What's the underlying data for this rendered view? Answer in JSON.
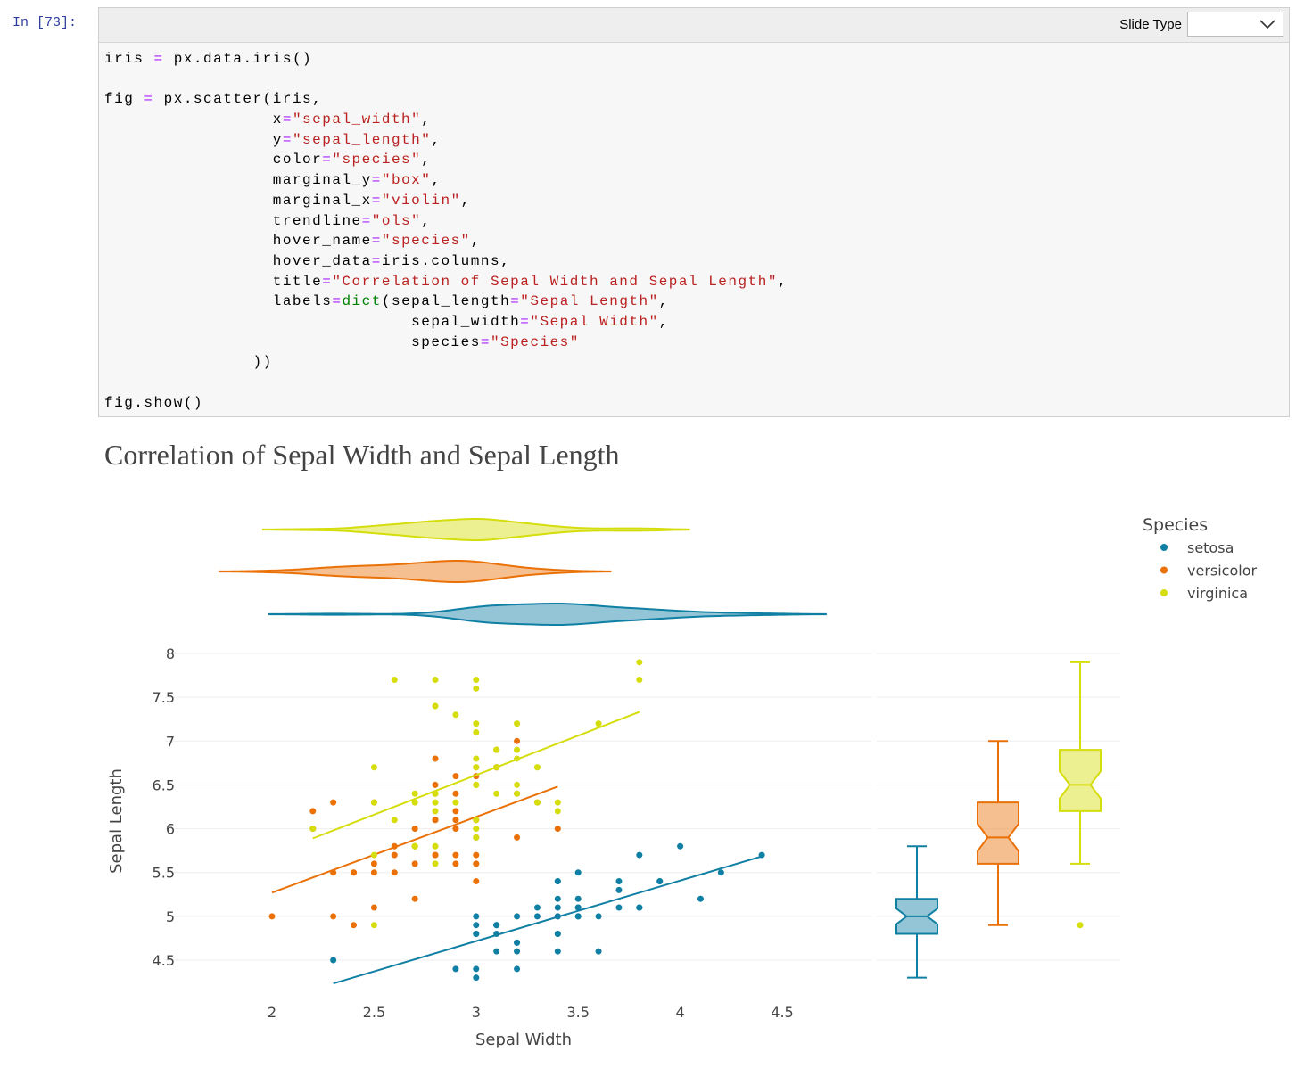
{
  "notebook": {
    "prompt": "In [73]:",
    "slide_type_label": "Slide Type",
    "slide_type_value": "",
    "code_lines": [
      "iris = px.data.iris()",
      "",
      "fig = px.scatter(iris,",
      "                 x=\"sepal_width\",",
      "                 y=\"sepal_length\",",
      "                 color=\"species\",",
      "                 marginal_y=\"box\",",
      "                 marginal_x=\"violin\",",
      "                 trendline=\"ols\",",
      "                 hover_name=\"species\",",
      "                 hover_data=iris.columns,",
      "                 title=\"Correlation of Sepal Width and Sepal Length\",",
      "                 labels=dict(sepal_length=\"Sepal Length\",",
      "                               sepal_width=\"Sepal Width\",",
      "                               species=\"Species\"",
      "               ))",
      "",
      "fig.show()"
    ]
  },
  "chart_data": {
    "type": "scatter",
    "title": "Correlation of Sepal Width and Sepal Length",
    "xlabel": "Sepal Width",
    "ylabel": "Sepal Length",
    "xlim": [
      1.93,
      4.87
    ],
    "ylim": [
      4.2,
      8.05
    ],
    "xticks": [
      "2",
      "2.5",
      "3",
      "3.5",
      "4",
      "4.5"
    ],
    "xtick_values": [
      2,
      2.5,
      3,
      3.5,
      4,
      4.5
    ],
    "yticks": [
      "4.5",
      "5",
      "5.5",
      "6",
      "6.5",
      "7",
      "7.5",
      "8"
    ],
    "ytick_values": [
      4.5,
      5,
      5.5,
      6,
      6.5,
      7,
      7.5,
      8
    ],
    "grid": "horizontal",
    "legend": {
      "title": "Species",
      "placement": "top-right"
    },
    "trendline": "ols",
    "marginal_x": "violin",
    "marginal_y": "box",
    "series": [
      {
        "name": "setosa",
        "color": "#0f7fa3",
        "x": [
          3.5,
          3.0,
          3.2,
          3.1,
          3.6,
          3.9,
          3.4,
          3.4,
          2.9,
          3.1,
          3.7,
          3.4,
          3.0,
          3.0,
          4.0,
          4.4,
          3.9,
          3.5,
          3.8,
          3.8,
          3.4,
          3.7,
          3.6,
          3.3,
          3.4,
          3.0,
          3.4,
          3.5,
          3.4,
          3.2,
          3.1,
          3.4,
          4.1,
          4.2,
          3.1,
          3.2,
          3.5,
          3.1,
          3.0,
          3.4,
          3.5,
          2.3,
          3.2,
          3.5,
          3.8,
          3.0,
          3.8,
          3.2,
          3.7,
          3.3
        ],
        "y": [
          5.1,
          4.9,
          4.7,
          4.6,
          5.0,
          5.4,
          4.6,
          5.0,
          4.4,
          4.9,
          5.4,
          4.8,
          4.8,
          4.3,
          5.8,
          5.7,
          5.4,
          5.1,
          5.7,
          5.1,
          5.4,
          5.1,
          4.6,
          5.1,
          4.8,
          5.0,
          5.0,
          5.2,
          5.2,
          4.7,
          4.8,
          5.4,
          5.2,
          5.5,
          4.9,
          5.0,
          5.5,
          4.9,
          4.4,
          5.1,
          5.0,
          4.5,
          4.4,
          5.0,
          5.1,
          4.8,
          5.1,
          4.6,
          5.3,
          5.0
        ],
        "box": {
          "lower_fence": 4.3,
          "q1": 4.8,
          "median": 5.0,
          "q3": 5.2,
          "upper_fence": 5.8,
          "outliers": []
        }
      },
      {
        "name": "versicolor",
        "color": "#ea7108",
        "x": [
          3.2,
          3.2,
          3.1,
          2.3,
          2.8,
          2.8,
          3.3,
          2.4,
          2.9,
          2.7,
          2.0,
          3.0,
          2.2,
          2.9,
          2.9,
          3.1,
          3.0,
          2.7,
          2.2,
          2.5,
          3.2,
          2.8,
          2.5,
          2.8,
          2.9,
          3.0,
          2.8,
          3.0,
          2.9,
          2.6,
          2.4,
          2.4,
          2.7,
          2.7,
          3.0,
          3.4,
          3.1,
          2.3,
          3.0,
          2.5,
          2.6,
          3.0,
          2.6,
          2.3,
          2.7,
          3.0,
          2.9,
          2.9,
          2.5,
          2.8
        ],
        "y": [
          7.0,
          6.4,
          6.9,
          5.5,
          6.5,
          5.7,
          6.3,
          4.9,
          6.6,
          5.2,
          5.0,
          5.9,
          6.0,
          6.1,
          5.6,
          6.7,
          5.6,
          5.8,
          6.2,
          5.6,
          5.9,
          6.1,
          6.3,
          6.1,
          6.4,
          6.6,
          6.8,
          6.7,
          6.0,
          5.7,
          5.5,
          5.5,
          5.8,
          6.0,
          5.4,
          6.0,
          6.7,
          6.3,
          5.6,
          5.5,
          5.5,
          6.1,
          5.8,
          5.0,
          5.6,
          5.7,
          5.7,
          6.2,
          5.1,
          5.7
        ],
        "box": {
          "lower_fence": 4.9,
          "q1": 5.6,
          "median": 5.9,
          "q3": 6.3,
          "upper_fence": 7.0,
          "outliers": []
        }
      },
      {
        "name": "virginica",
        "color": "#d5dd0c",
        "x": [
          3.3,
          2.7,
          3.0,
          2.9,
          3.0,
          3.0,
          2.5,
          2.9,
          2.5,
          3.6,
          3.2,
          2.7,
          3.0,
          2.5,
          2.8,
          3.2,
          3.0,
          3.8,
          2.6,
          2.2,
          3.2,
          2.8,
          2.8,
          2.7,
          3.3,
          3.2,
          2.8,
          3.0,
          2.8,
          3.0,
          2.8,
          3.8,
          2.8,
          2.8,
          2.6,
          3.0,
          3.4,
          3.1,
          3.0,
          3.1,
          3.1,
          3.1,
          2.7,
          3.2,
          3.3,
          3.0,
          2.5,
          3.0,
          3.4,
          3.0
        ],
        "y": [
          6.3,
          5.8,
          7.1,
          6.3,
          6.5,
          7.6,
          4.9,
          7.3,
          6.7,
          7.2,
          6.5,
          6.4,
          6.8,
          5.7,
          5.8,
          6.4,
          6.5,
          7.7,
          7.7,
          6.0,
          6.9,
          5.6,
          7.7,
          6.3,
          6.7,
          7.2,
          6.2,
          6.1,
          6.4,
          7.2,
          7.4,
          7.9,
          6.4,
          6.3,
          6.1,
          7.7,
          6.3,
          6.4,
          6.0,
          6.9,
          6.7,
          6.9,
          5.8,
          6.8,
          6.7,
          6.7,
          6.3,
          6.5,
          6.2,
          5.9
        ],
        "box": {
          "lower_fence": 5.6,
          "q1": 6.2,
          "median": 6.5,
          "q3": 6.9,
          "upper_fence": 7.9,
          "outliers": [
            4.9
          ]
        }
      }
    ]
  }
}
